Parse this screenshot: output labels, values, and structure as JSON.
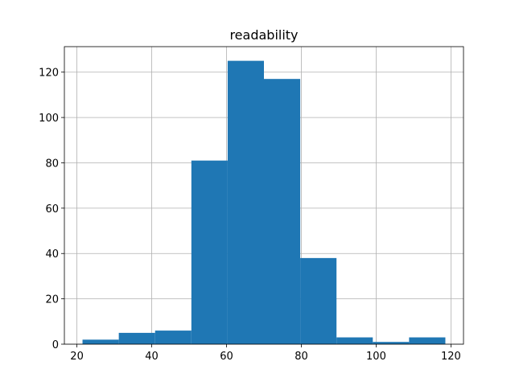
{
  "chart_data": {
    "type": "histogram",
    "title": "readability",
    "bins": [
      21.5,
      31.2,
      40.9,
      50.6,
      60.3,
      70.0,
      79.7,
      89.4,
      99.1,
      108.8,
      118.5
    ],
    "values": [
      2,
      5,
      6,
      81,
      125,
      117,
      38,
      3,
      1,
      3
    ],
    "color": "#1f77b4",
    "xlim": [
      16.65,
      123.35
    ],
    "xticks": [
      20,
      40,
      60,
      80,
      100,
      120
    ],
    "ylim": [
      0,
      131.25
    ],
    "yticks": [
      0,
      20,
      40,
      60,
      80,
      100,
      120
    ],
    "grid": true
  }
}
